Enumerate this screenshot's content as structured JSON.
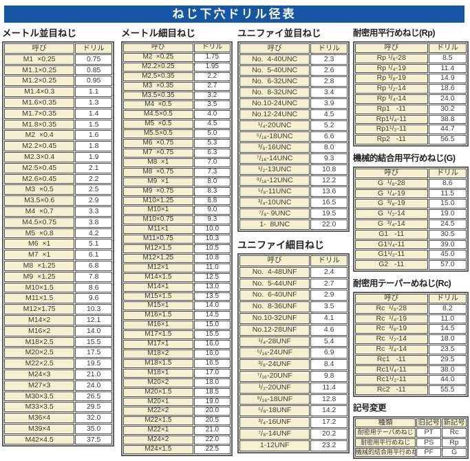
{
  "title": "ねじ下穴ドリル径表",
  "col_headers": {
    "name": "呼び",
    "drill": "ドリル"
  },
  "colors": {
    "banner_blue": "#1656a5",
    "cell_yellow": "#f4efcf",
    "border_dark": "#474747",
    "outer_border": "#5c5c5c"
  },
  "sections": [
    {
      "id": "metric_coarse",
      "heading": "メートル並目ねじ",
      "rows": [
        [
          "M1  ×0.25",
          "0.75"
        ],
        [
          "M1.1×0.25",
          "0.85"
        ],
        [
          "M1.2×0.25",
          "0.95"
        ],
        [
          "M1.4×0.3",
          "1.1"
        ],
        [
          "M1.6×0.35",
          "1.3"
        ],
        [
          "M1.7×0.35",
          "1.4"
        ],
        [
          "M1.8×0.35",
          "1.5"
        ],
        [
          "M2  ×0.4",
          "1.6"
        ],
        [
          "M2.2×0.45",
          "1.8"
        ],
        [
          "M2.3×0.4",
          "1.9"
        ],
        [
          "M2.5×0.45",
          "2.1"
        ],
        [
          "M2.6×0.45",
          "2.2"
        ],
        [
          "M3  ×0.5",
          "2.5"
        ],
        [
          "M3.5×0.6",
          "2.9"
        ],
        [
          "M4  ×0.7",
          "3.3"
        ],
        [
          "M4.5×0.75",
          "3.8"
        ],
        [
          "M5  ×0.8",
          "4.2"
        ],
        [
          "M6  ×1",
          "5.1"
        ],
        [
          "M7  ×1",
          "6.1"
        ],
        [
          "M8  ×1.25",
          "6.8"
        ],
        [
          "M9  ×1.25",
          "7.8"
        ],
        [
          "M10×1.5",
          "8.6"
        ],
        [
          "M11×1.5",
          "9.6"
        ],
        [
          "M12×1.75",
          "10.3"
        ],
        [
          "M14×2",
          "12.1"
        ],
        [
          "M16×2",
          "14.0"
        ],
        [
          "M18×2.5",
          "15.5"
        ],
        [
          "M20×2.5",
          "17.5"
        ],
        [
          "M22×2.5",
          "19.5"
        ],
        [
          "M24×3",
          "21.0"
        ],
        [
          "M27×3",
          "24.0"
        ],
        [
          "M30×3.5",
          "26.5"
        ],
        [
          "M33×3.5",
          "29.5"
        ],
        [
          "M36×4",
          "32.0"
        ],
        [
          "M39×4",
          "35.0"
        ],
        [
          "M42×4.5",
          "37.5"
        ]
      ]
    },
    {
      "id": "metric_fine",
      "heading": "メートル細目ねじ",
      "rows": [
        [
          "M2  ×0.25",
          "1.75"
        ],
        [
          "M2.2×0.25",
          "1.95"
        ],
        [
          "M2.5×0.35",
          "2.2"
        ],
        [
          "M3  ×0.35",
          "2.7"
        ],
        [
          "M3.5×0.35",
          "3.2"
        ],
        [
          "M4  ×0.5",
          "3.5"
        ],
        [
          "M4.5×0.5",
          "4.0"
        ],
        [
          "M5  ×0.5",
          "4.5"
        ],
        [
          "M5.5×0.5",
          "5.0"
        ],
        [
          "M6  ×0.75",
          "5.3"
        ],
        [
          "M7  ×0.75",
          "6.3"
        ],
        [
          "M8  ×1",
          "7.0"
        ],
        [
          "M8  ×0.75",
          "7.3"
        ],
        [
          "M9  ×1",
          "8.0"
        ],
        [
          "M9  ×0.75",
          "8.3"
        ],
        [
          "M10×1.25",
          "8.8"
        ],
        [
          "M10×1",
          "9.0"
        ],
        [
          "M10×0.75",
          "9.3"
        ],
        [
          "M11×1",
          "10.0"
        ],
        [
          "M11×0.75",
          "10.3"
        ],
        [
          "M12×1.5",
          "10.5"
        ],
        [
          "M12×1.25",
          "10.8"
        ],
        [
          "M12×1",
          "11.0"
        ],
        [
          "M14×1.5",
          "12.5"
        ],
        [
          "M14×1",
          "13.0"
        ],
        [
          "M15×1.5",
          "13.5"
        ],
        [
          "M15×1",
          "14.0"
        ],
        [
          "M16×1.5",
          "14.5"
        ],
        [
          "M16×1",
          "15.0"
        ],
        [
          "M17×1.5",
          "15.5"
        ],
        [
          "M17×1",
          "16.0"
        ],
        [
          "M18×2",
          "16.0"
        ],
        [
          "M18×1.5",
          "16.5"
        ],
        [
          "M18×1",
          "17.0"
        ],
        [
          "M20×2",
          "18.0"
        ],
        [
          "M20×1.5",
          "18.5"
        ],
        [
          "M20×1",
          "19.0"
        ],
        [
          "M22×2",
          "20.0"
        ],
        [
          "M22×1.5",
          "20.5"
        ],
        [
          "M22×1",
          "21.0"
        ],
        [
          "M24×2",
          "22.0"
        ],
        [
          "M24×1.5",
          "22.5"
        ]
      ]
    },
    {
      "id": "unified_coarse",
      "heading": "ユニファイ並目ねじ",
      "rows": [
        [
          "No.  4-40UNC",
          "2.3"
        ],
        [
          "No.  5-40UNC",
          "2.6"
        ],
        [
          "No.  6-32UNC",
          "2.8"
        ],
        [
          "No.  8-32UNC",
          "3.4"
        ],
        [
          "No.10-24UNC",
          "3.9"
        ],
        [
          "No.12-24UNC",
          "4.5"
        ],
        [
          "¹/₄-20UNC",
          "5.2"
        ],
        [
          "⁵/₁₆-18UNC",
          "6.6"
        ],
        [
          "³/₈-16UNC",
          "8.0"
        ],
        [
          "⁷/₁₆-14UNC",
          "9.3"
        ],
        [
          "¹/₂-13UNC",
          "10.8"
        ],
        [
          "⁹/₁₆-12UNC",
          "12.2"
        ],
        [
          "⁵/₈-11UNC",
          "13.6"
        ],
        [
          "³/₄-10UNC",
          "16.5"
        ],
        [
          "⁷/₈- 9UNC",
          "19.5"
        ],
        [
          "1-  8UNC",
          "22.0"
        ]
      ]
    },
    {
      "id": "unified_fine",
      "heading": "ユニファイ細目ねじ",
      "rows": [
        [
          "No.  4-48UNF",
          "2.4"
        ],
        [
          "No.  5-44UNF",
          "2.7"
        ],
        [
          "No.  6-40UNF",
          "2.9"
        ],
        [
          "No.  8-36UNF",
          "3.5"
        ],
        [
          "No.10-32UNF",
          "4.1"
        ],
        [
          "No.12-28UNF",
          "4.6"
        ],
        [
          "¹/₄-28UNF",
          "5.4"
        ],
        [
          "⁵/₁₆-24UNF",
          "6.9"
        ],
        [
          "³/₈-24UNF",
          "8.4"
        ],
        [
          "⁷/₁₆-20UNF",
          "9.8"
        ],
        [
          "¹/₂-20UNF",
          "11.4"
        ],
        [
          "⁹/₁₆-18UNF",
          "12.8"
        ],
        [
          "⁵/₈-18UNF",
          "14.2"
        ],
        [
          "³/₄-16UNF",
          "17.2"
        ],
        [
          "⁷/₈-14UNF",
          "20.2"
        ],
        [
          "1-12UNF",
          "23.2"
        ]
      ]
    },
    {
      "id": "rp",
      "heading": "耐密用平行めねじ(Rp)",
      "rows": [
        [
          "Rp ¹/₈-28",
          "8.5"
        ],
        [
          "Rp ¹/₄-19",
          "11.4"
        ],
        [
          "Rp ³/₈-19",
          "14.9"
        ],
        [
          "Rp ¹/₂-14",
          "18.6"
        ],
        [
          "Rp ³/₄-14",
          "24.0"
        ],
        [
          "Rp1   -11",
          "30.2"
        ],
        [
          "Rp1¹/₄-11",
          "38.8"
        ],
        [
          "Rp1¹/₂-11",
          "44.7"
        ],
        [
          "Rp2   -11",
          "56.5"
        ]
      ]
    },
    {
      "id": "g",
      "heading": "機械的結合用平行めねじ(G)",
      "rows": [
        [
          "G  ¹/₈-28",
          "8.6"
        ],
        [
          "G  ¹/₄-19",
          "11.5"
        ],
        [
          "G  ³/₈-19",
          "15.0"
        ],
        [
          "G  ¹/₂-14",
          "19.0"
        ],
        [
          "G  ³/₄-14",
          "24.5"
        ],
        [
          "G1   -11",
          "30.5"
        ],
        [
          "G1¹/₄-11",
          "39.0"
        ],
        [
          "G1¹/₂-11",
          "45.0"
        ],
        [
          "G2   -11",
          "57.0"
        ]
      ]
    },
    {
      "id": "rc",
      "heading": "耐密用テーパーめねじ(Rc)",
      "rows": [
        [
          "Rc  ¹/₈-28",
          "8.2"
        ],
        [
          "Rc  ¹/₄-19",
          "11.0"
        ],
        [
          "Rc  ³/₈-19",
          "14.5"
        ],
        [
          "Rc  ¹/₂-14",
          "18.0"
        ],
        [
          "Rc  ³/₄-14",
          "23.5"
        ],
        [
          "Rc1   -11",
          "29.5"
        ],
        [
          "Rc1¹/₄-11",
          "38.0"
        ],
        [
          "Rc1¹/₂-11",
          "44.0"
        ],
        [
          "Rc2   -11",
          "55.5"
        ]
      ]
    }
  ],
  "symbol_change": {
    "heading": "記号変更",
    "headers": [
      "種類",
      "旧記号",
      "新記号"
    ],
    "rows": [
      [
        "耐密用テーパめねじ",
        "PT",
        "Rc"
      ],
      [
        "耐密用平行めねじ",
        "PS",
        "Rp"
      ],
      [
        "機械的結合用平行めねじ",
        "PF",
        "G"
      ]
    ]
  }
}
